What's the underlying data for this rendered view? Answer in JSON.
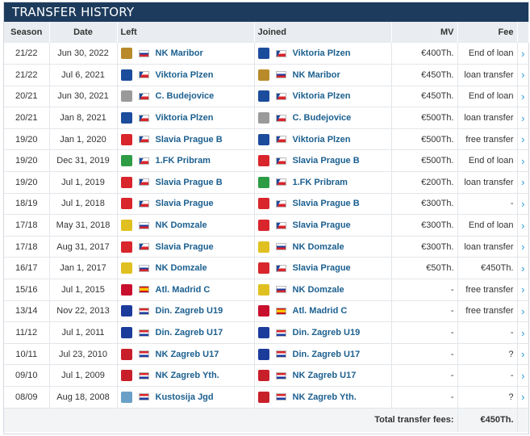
{
  "title": "TRANSFER HISTORY",
  "columns": {
    "season": "Season",
    "date": "Date",
    "left": "Left",
    "joined": "Joined",
    "mv": "MV",
    "fee": "Fee"
  },
  "colors": {
    "header_bg": "#1d3b5c",
    "link": "#1b5f8f",
    "arrow": "#2d9bd6"
  },
  "rows": [
    {
      "season": "21/22",
      "date": "Jun 30, 2022",
      "left": "NK Maribor",
      "left_flag": "svn",
      "joined": "Viktoria Plzen",
      "joined_flag": "cze",
      "mv": "€400Th.",
      "fee": "End of loan"
    },
    {
      "season": "21/22",
      "date": "Jul 6, 2021",
      "left": "Viktoria Plzen",
      "left_flag": "cze",
      "joined": "NK Maribor",
      "joined_flag": "svn",
      "mv": "€450Th.",
      "fee": "loan transfer"
    },
    {
      "season": "20/21",
      "date": "Jun 30, 2021",
      "left": "C. Budejovice",
      "left_flag": "cze",
      "joined": "Viktoria Plzen",
      "joined_flag": "cze",
      "mv": "€450Th.",
      "fee": "End of loan"
    },
    {
      "season": "20/21",
      "date": "Jan 8, 2021",
      "left": "Viktoria Plzen",
      "left_flag": "cze",
      "joined": "C. Budejovice",
      "joined_flag": "cze",
      "mv": "€500Th.",
      "fee": "loan transfer"
    },
    {
      "season": "19/20",
      "date": "Jan 1, 2020",
      "left": "Slavia Prague B",
      "left_flag": "cze",
      "joined": "Viktoria Plzen",
      "joined_flag": "cze",
      "mv": "€500Th.",
      "fee": "free transfer"
    },
    {
      "season": "19/20",
      "date": "Dec 31, 2019",
      "left": "1.FK Pribram",
      "left_flag": "cze",
      "joined": "Slavia Prague B",
      "joined_flag": "cze",
      "mv": "€500Th.",
      "fee": "End of loan"
    },
    {
      "season": "19/20",
      "date": "Jul 1, 2019",
      "left": "Slavia Prague B",
      "left_flag": "cze",
      "joined": "1.FK Pribram",
      "joined_flag": "cze",
      "mv": "€200Th.",
      "fee": "loan transfer"
    },
    {
      "season": "18/19",
      "date": "Jul 1, 2018",
      "left": "Slavia Prague",
      "left_flag": "cze",
      "joined": "Slavia Prague B",
      "joined_flag": "cze",
      "mv": "€300Th.",
      "fee": "-"
    },
    {
      "season": "17/18",
      "date": "May 31, 2018",
      "left": "NK Domzale",
      "left_flag": "svn",
      "joined": "Slavia Prague",
      "joined_flag": "cze",
      "mv": "€300Th.",
      "fee": "End of loan"
    },
    {
      "season": "17/18",
      "date": "Aug 31, 2017",
      "left": "Slavia Prague",
      "left_flag": "cze",
      "joined": "NK Domzale",
      "joined_flag": "svn",
      "mv": "€300Th.",
      "fee": "loan transfer"
    },
    {
      "season": "16/17",
      "date": "Jan 1, 2017",
      "left": "NK Domzale",
      "left_flag": "svn",
      "joined": "Slavia Prague",
      "joined_flag": "cze",
      "mv": "€50Th.",
      "fee": "€450Th."
    },
    {
      "season": "15/16",
      "date": "Jul 1, 2015",
      "left": "Atl. Madrid C",
      "left_flag": "esp",
      "joined": "NK Domzale",
      "joined_flag": "svn",
      "mv": "-",
      "fee": "free transfer"
    },
    {
      "season": "13/14",
      "date": "Nov 22, 2013",
      "left": "Din. Zagreb U19",
      "left_flag": "cro",
      "joined": "Atl. Madrid C",
      "joined_flag": "esp",
      "mv": "-",
      "fee": "free transfer"
    },
    {
      "season": "11/12",
      "date": "Jul 1, 2011",
      "left": "Din. Zagreb U17",
      "left_flag": "cro",
      "joined": "Din. Zagreb U19",
      "joined_flag": "cro",
      "mv": "-",
      "fee": "-"
    },
    {
      "season": "10/11",
      "date": "Jul 23, 2010",
      "left": "NK Zagreb U17",
      "left_flag": "cro",
      "joined": "Din. Zagreb U17",
      "joined_flag": "cro",
      "mv": "-",
      "fee": "?"
    },
    {
      "season": "09/10",
      "date": "Jul 1, 2009",
      "left": "NK Zagreb Yth.",
      "left_flag": "cro",
      "joined": "NK Zagreb U17",
      "joined_flag": "cro",
      "mv": "-",
      "fee": "-"
    },
    {
      "season": "08/09",
      "date": "Aug 18, 2008",
      "left": "Kustosija Jgd",
      "left_flag": "cro",
      "joined": "NK Zagreb Yth.",
      "joined_flag": "cro",
      "mv": "-",
      "fee": "?"
    }
  ],
  "footer": {
    "label": "Total transfer fees:",
    "total": "€450Th."
  }
}
